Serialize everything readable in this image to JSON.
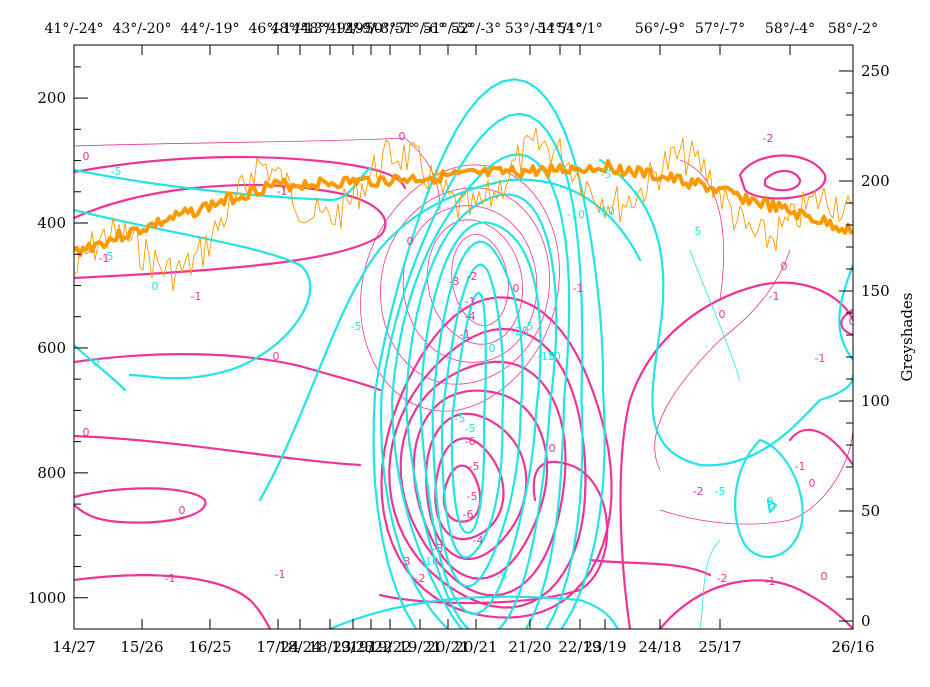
{
  "chart_data": {
    "type": "contour",
    "colors": {
      "magenta": "#ee3399",
      "cyan": "#22e4e4",
      "orange": "#ff9900",
      "axis": "#000000"
    },
    "left_axis": {
      "ylim": [
        1050,
        115
      ],
      "ticks": [
        200,
        400,
        600,
        800,
        1000
      ],
      "tick_labels": [
        "200",
        "400",
        "600",
        "800",
        "1000"
      ]
    },
    "right_axis": {
      "label": "Greyshades",
      "ylim": [
        0,
        255
      ],
      "ticks": [
        0,
        50,
        100,
        150,
        200,
        250
      ],
      "tick_labels": [
        "0",
        "50",
        "100",
        "150",
        "200",
        "250"
      ]
    },
    "bottom_axis": {
      "tick_labels": [
        "14/27",
        "15/26",
        "16/25",
        "17/24",
        "18/24",
        "18/23",
        "19/23",
        "19/22",
        "19/22",
        "19/21",
        "20/21",
        "20/21",
        "21/20",
        "22/19",
        "23/19",
        "24/18",
        "25/17",
        "26/16"
      ]
    },
    "top_axis": {
      "tick_labels": [
        "41°/-24°",
        "43°/-20°",
        "44°/-19°",
        "46°/-14°",
        "48°/-13°",
        "48°/-12°",
        "49°/-9°",
        "49°/-8°",
        "50°/-7°",
        "51°/-6°",
        "51°/-5°",
        "52°/-3°",
        "53°/-1°",
        "54°/1°",
        "54°/1°",
        "56°/-9°",
        "57°/-7°",
        "58°/-4°",
        "58°/-2°"
      ]
    },
    "contour_labels": {
      "magenta": [
        "0",
        "-1",
        "-1",
        "-1",
        "0",
        "0",
        "0",
        "0",
        "-1",
        "-1",
        "0",
        "-1",
        "-1",
        "-2",
        "-3",
        "-4",
        "-5",
        "-6",
        "-3",
        "-4",
        "-5",
        "-6",
        "-3",
        "-2",
        "-2",
        "-1",
        "0",
        "-2",
        "0",
        "0",
        "-2",
        "0",
        "-1",
        "-1",
        "0",
        "-1",
        "-1",
        "0",
        "0"
      ],
      "cyan": [
        "-5",
        "-5",
        "0",
        "-5",
        "-5",
        "-10",
        "-10",
        "-20",
        "-15",
        "-10",
        "-5",
        "-10",
        "-5",
        "-5",
        "5",
        "0",
        "0",
        "-5",
        "-5",
        "0"
      ]
    }
  }
}
